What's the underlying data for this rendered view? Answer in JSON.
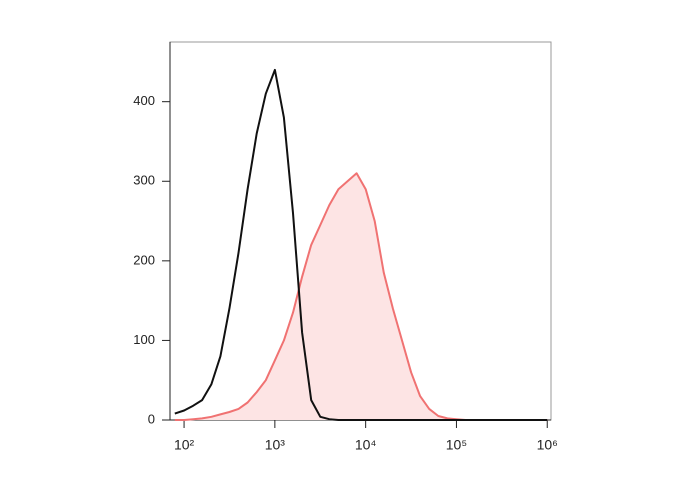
{
  "chart_data": {
    "type": "histogram-overlay",
    "x": [
      79,
      100,
      126,
      158,
      200,
      251,
      316,
      398,
      501,
      631,
      794,
      1000,
      1259,
      1585,
      1995,
      2512,
      3162,
      3981,
      5012,
      6310,
      7943,
      10000,
      12589,
      15849,
      19953,
      25119,
      31623,
      39811,
      50119,
      63096,
      79433,
      100000,
      125893,
      158489,
      199526,
      251189,
      316228,
      398107,
      501187,
      630957,
      794328,
      1000000
    ],
    "series": [
      {
        "color": "#f07272",
        "fill": "#fde4e4",
        "values": [
          0,
          0,
          1,
          2,
          4,
          7,
          10,
          14,
          22,
          35,
          50,
          75,
          100,
          135,
          180,
          220,
          245,
          270,
          290,
          300,
          310,
          290,
          250,
          185,
          140,
          100,
          60,
          30,
          14,
          5,
          2,
          1,
          0,
          0,
          0,
          0,
          0,
          0,
          0,
          0,
          0,
          0
        ]
      },
      {
        "color": "#111111",
        "values": [
          8,
          12,
          18,
          25,
          45,
          80,
          140,
          210,
          290,
          360,
          410,
          440,
          380,
          260,
          110,
          25,
          4,
          1,
          0,
          0,
          0,
          0,
          0,
          0,
          0,
          0,
          0,
          0,
          0,
          0,
          0,
          0,
          0,
          0,
          0,
          0,
          0,
          0,
          0,
          0,
          0,
          0
        ]
      }
    ],
    "xlog": true,
    "xlim": [
      70,
      1100000
    ],
    "xticks": [
      {
        "value": 100,
        "label": "10²"
      },
      {
        "value": 1000,
        "label": "10³"
      },
      {
        "value": 10000,
        "label": "10⁴"
      },
      {
        "value": 100000,
        "label": "10⁵"
      },
      {
        "value": 1000000,
        "label": "10⁶"
      }
    ],
    "ylim": [
      0,
      475
    ],
    "yticks": [
      0,
      100,
      200,
      300,
      400
    ]
  }
}
